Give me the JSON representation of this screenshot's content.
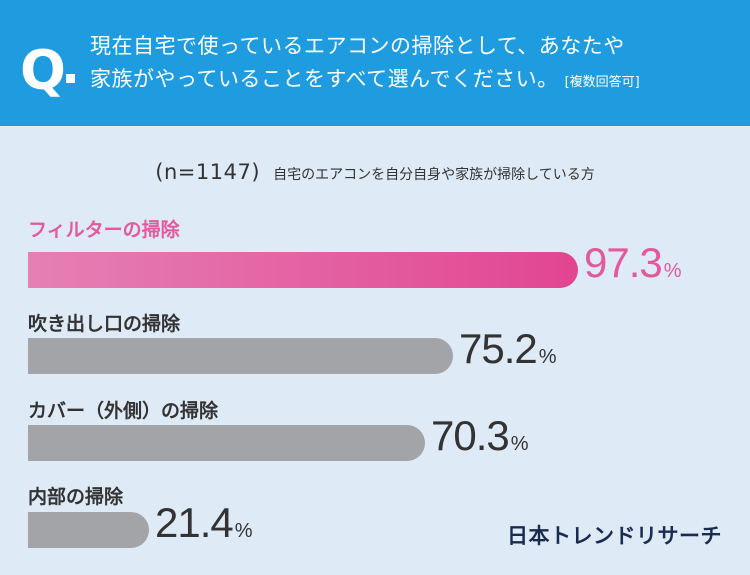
{
  "header": {
    "q_mark": "Q",
    "question_line1": "現在自宅で使っているエアコンの掃除として、あなたや",
    "question_line2": "家族がやっていることをすべて選んでください。",
    "note": "[複数回答可]"
  },
  "sample": {
    "n_label": "(n=1147)",
    "description": "自宅のエアコンを自分自身や家族が掃除している方"
  },
  "chart_data": {
    "type": "bar",
    "orientation": "horizontal",
    "unit": "%",
    "categories": [
      "フィルターの掃除",
      "吹き出し口の掃除",
      "カバー（外側）の掃除",
      "内部の掃除"
    ],
    "values": [
      97.3,
      75.2,
      70.3,
      21.4
    ],
    "value_labels": [
      "97.3",
      "75.2",
      "70.3",
      "21.4"
    ],
    "highlight_index": 0,
    "colors": {
      "highlight_start": "#e580b4",
      "highlight_end": "#e24592",
      "highlight_text": "#e2599e",
      "default_bar": "#a3a4a8",
      "default_text": "#333333"
    },
    "xlim": [
      0,
      100
    ]
  },
  "branding": {
    "logo_text": "日本トレンドリサーチ"
  },
  "colors": {
    "header_bg": "#1f9ce0",
    "page_bg": "#deeaf6",
    "logo": "#1a2b52"
  }
}
